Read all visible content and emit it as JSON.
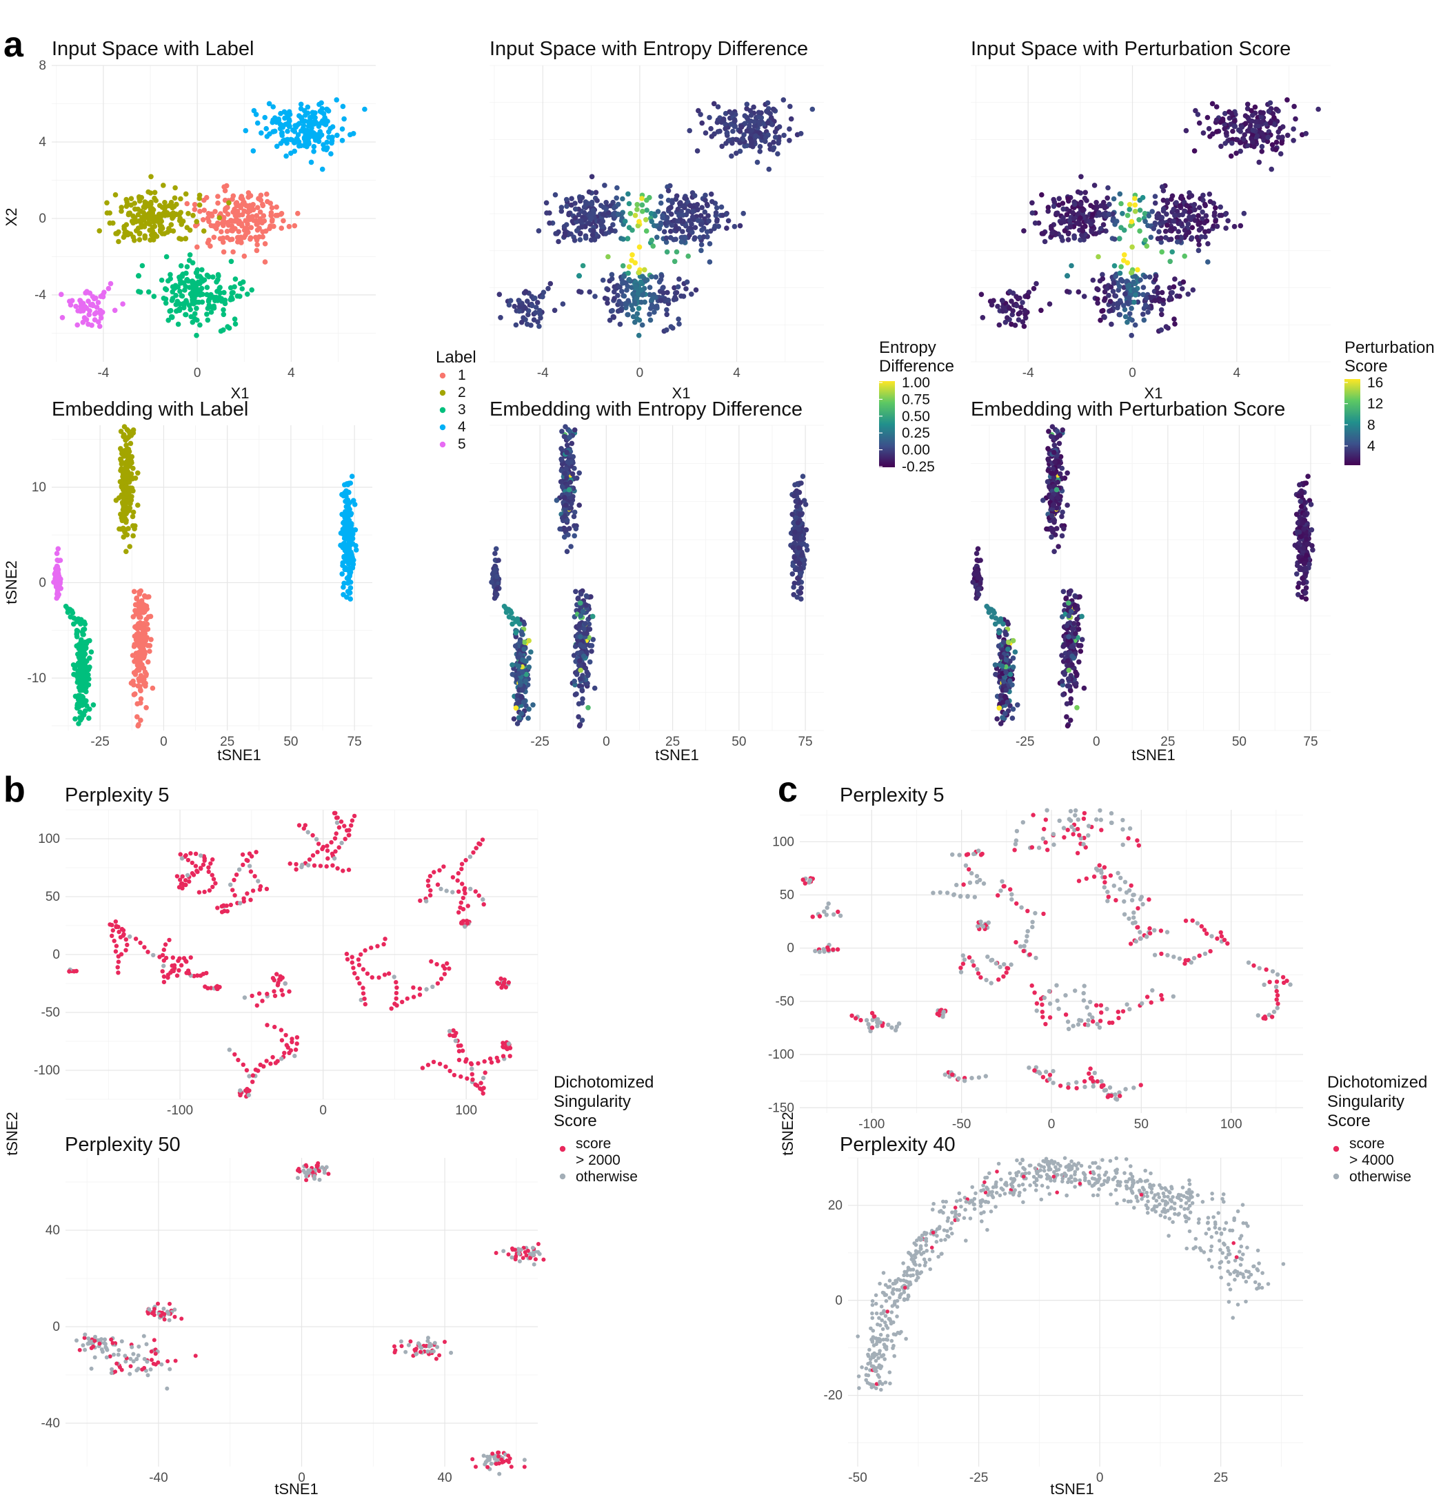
{
  "figure": {
    "panel_letters": {
      "a": "a",
      "b": "b",
      "c": "c"
    },
    "colors": {
      "label_1": "#F8766D",
      "label_2": "#A3A500",
      "label_3": "#00BF7D",
      "label_4": "#00B0F6",
      "label_5": "#E76BF3",
      "singular": "#E8285C",
      "otherwise": "#A3AEB7",
      "viridis_low": "#440154",
      "viridis_mid": "#21908C",
      "viridis_high": "#FDE725"
    }
  },
  "legends": {
    "label": {
      "title": "Label",
      "entries": [
        "1",
        "2",
        "3",
        "4",
        "5"
      ]
    },
    "entropy": {
      "title_line1": "Entropy",
      "title_line2": "Difference",
      "ticks": [
        "1.00",
        "0.75",
        "0.50",
        "0.25",
        "0.00",
        "-0.25"
      ]
    },
    "perturbation": {
      "title_line1": "Perturbation",
      "title_line2": "Score",
      "ticks": [
        "16",
        "12",
        "8",
        "4"
      ]
    },
    "singularity_b": {
      "title_line1": "Dichotomized",
      "title_line2": "Singularity",
      "title_line3": "Score",
      "entry1_line1": "score",
      "entry1_line2": "> 2000",
      "entry2": "otherwise"
    },
    "singularity_c": {
      "title_line1": "Dichotomized",
      "title_line2": "Singularity",
      "title_line3": "Score",
      "entry1_line1": "score",
      "entry1_line2": "> 4000",
      "entry2": "otherwise"
    }
  },
  "chart_data": [
    {
      "id": "a1",
      "type": "scatter",
      "title": "Input Space with Label",
      "xlabel": "X1",
      "ylabel": "X2",
      "xlim": [
        -6.2,
        7.6
      ],
      "ylim": [
        -7.5,
        8.0
      ],
      "x_ticks": [
        -4,
        0,
        4
      ],
      "y_ticks": [
        -4,
        0,
        4,
        8
      ],
      "color_by": "label",
      "clusters": [
        {
          "label": "1",
          "center": [
            1.8,
            0.0
          ],
          "spread": [
            0.95,
            0.85
          ],
          "n": 190
        },
        {
          "label": "2",
          "center": [
            -1.8,
            0.0
          ],
          "spread": [
            0.9,
            0.75
          ],
          "n": 190
        },
        {
          "label": "3",
          "center": [
            0.0,
            -4.0
          ],
          "spread": [
            1.0,
            0.85
          ],
          "n": 190
        },
        {
          "label": "4",
          "center": [
            4.5,
            4.7
          ],
          "spread": [
            0.9,
            0.65
          ],
          "n": 180
        },
        {
          "label": "5",
          "center": [
            -4.6,
            -4.6
          ],
          "spread": [
            0.6,
            0.5
          ],
          "n": 55
        }
      ]
    },
    {
      "id": "a2",
      "type": "scatter",
      "title": "Input Space with Entropy Difference",
      "xlabel": "X1",
      "ylabel": "",
      "xlim": [
        -6.2,
        7.6
      ],
      "ylim": [
        -7.5,
        8.0
      ],
      "x_ticks": [
        -4,
        0,
        4
      ],
      "y_ticks": [],
      "color_by": "entropy_difference",
      "color_range": [
        -0.25,
        1.0
      ]
    },
    {
      "id": "a3",
      "type": "scatter",
      "title": "Input Space with Perturbation Score",
      "xlabel": "X1",
      "ylabel": "",
      "xlim": [
        -6.2,
        7.6
      ],
      "ylim": [
        -7.5,
        8.0
      ],
      "x_ticks": [
        -4,
        0,
        4
      ],
      "y_ticks": [],
      "color_by": "perturbation_score",
      "color_range": [
        1,
        17
      ]
    },
    {
      "id": "a4",
      "type": "scatter",
      "title": "Embedding with Label",
      "xlabel": "tSNE1",
      "ylabel": "tSNE2",
      "xlim": [
        -44,
        82
      ],
      "ylim": [
        -15.5,
        16.5
      ],
      "x_ticks": [
        -25,
        0,
        25,
        50,
        75
      ],
      "y_ticks": [
        -10,
        0,
        10
      ],
      "color_by": "label",
      "clusters": [
        {
          "label": "2",
          "center": [
            -14.5,
            10.5
          ],
          "spread": [
            1.4,
            3.2
          ],
          "n": 190
        },
        {
          "label": "4",
          "center": [
            72.5,
            4.5
          ],
          "spread": [
            1.3,
            2.8
          ],
          "n": 180
        },
        {
          "label": "1",
          "center": [
            -9.0,
            -6.5
          ],
          "spread": [
            1.5,
            3.0
          ],
          "n": 190
        },
        {
          "label": "3",
          "center": [
            -32.0,
            -9.5
          ],
          "spread": [
            1.4,
            2.4
          ],
          "n": 190
        },
        {
          "label": "5",
          "center": [
            -41.5,
            0.5
          ],
          "spread": [
            0.6,
            1.0
          ],
          "n": 55
        }
      ]
    },
    {
      "id": "a5",
      "type": "scatter",
      "title": "Embedding with Entropy Difference",
      "xlabel": "tSNE1",
      "ylabel": "",
      "xlim": [
        -44,
        82
      ],
      "ylim": [
        -15.5,
        16.5
      ],
      "x_ticks": [
        -25,
        0,
        25,
        50,
        75
      ],
      "y_ticks": [],
      "color_by": "entropy_difference"
    },
    {
      "id": "a6",
      "type": "scatter",
      "title": "Embedding with Perturbation Score",
      "xlabel": "tSNE1",
      "ylabel": "",
      "xlim": [
        -44,
        82
      ],
      "ylim": [
        -15.5,
        16.5
      ],
      "x_ticks": [
        -25,
        0,
        25,
        50,
        75
      ],
      "y_ticks": [],
      "color_by": "perturbation_score"
    },
    {
      "id": "b1",
      "type": "scatter",
      "title": "Perplexity 5",
      "xlabel": "",
      "ylabel": "tSNE2",
      "xlim": [
        -180,
        150
      ],
      "ylim": [
        -125,
        125
      ],
      "x_ticks": [
        -100,
        0,
        100
      ],
      "y_ticks": [
        -100,
        -50,
        0,
        50,
        100
      ],
      "color_by": "dichotomized_singularity",
      "clusters": [
        {
          "center": [
            -80,
            70
          ],
          "spread": [
            14,
            18
          ],
          "n": 45,
          "kind": "strands"
        },
        {
          "center": [
            -55,
            60
          ],
          "spread": [
            8,
            26
          ],
          "n": 35,
          "kind": "strands"
        },
        {
          "center": [
            10,
            90
          ],
          "spread": [
            22,
            22
          ],
          "n": 55,
          "kind": "strands"
        },
        {
          "center": [
            95,
            70
          ],
          "spread": [
            22,
            22
          ],
          "n": 55,
          "kind": "strands"
        },
        {
          "center": [
            -130,
            0
          ],
          "spread": [
            25,
            18
          ],
          "n": 60,
          "kind": "strands"
        },
        {
          "center": [
            -85,
            -22
          ],
          "spread": [
            8,
            8
          ],
          "n": 18,
          "kind": "strands"
        },
        {
          "center": [
            -45,
            -65
          ],
          "spread": [
            18,
            30
          ],
          "n": 70,
          "kind": "strands"
        },
        {
          "center": [
            50,
            -15
          ],
          "spread": [
            25,
            20
          ],
          "n": 65,
          "kind": "strands"
        },
        {
          "center": [
            95,
            -95
          ],
          "spread": [
            25,
            17
          ],
          "n": 60,
          "kind": "strands"
        },
        {
          "center": [
            -172,
            -14
          ],
          "spread": [
            3,
            1.5
          ],
          "n": 5,
          "kind": "strands"
        }
      ]
    },
    {
      "id": "b2",
      "type": "scatter",
      "title": "Perplexity 50",
      "xlabel": "tSNE1",
      "ylabel": "",
      "xlim": [
        -66,
        66
      ],
      "ylim": [
        -58,
        70
      ],
      "x_ticks": [
        -40,
        0,
        40
      ],
      "y_ticks": [
        -40,
        0,
        40
      ],
      "color_by": "dichotomized_singularity",
      "clusters": [
        {
          "center": [
            3,
            64
          ],
          "spread": [
            2.5,
            1.6
          ],
          "n": 45,
          "kind": "blob"
        },
        {
          "center": [
            62,
            30
          ],
          "spread": [
            3,
            1.6
          ],
          "n": 45,
          "kind": "blob"
        },
        {
          "center": [
            -39,
            6
          ],
          "spread": [
            2.5,
            1.6
          ],
          "n": 40,
          "kind": "blob"
        },
        {
          "center": [
            -57,
            -7
          ],
          "spread": [
            3,
            1.6
          ],
          "n": 40,
          "kind": "blob"
        },
        {
          "center": [
            -45,
            -14
          ],
          "spread": [
            6,
            4
          ],
          "n": 60,
          "kind": "blob"
        },
        {
          "center": [
            34,
            -9
          ],
          "spread": [
            3,
            1.8
          ],
          "n": 45,
          "kind": "blob"
        },
        {
          "center": [
            54,
            -55
          ],
          "spread": [
            3.5,
            1.8
          ],
          "n": 45,
          "kind": "blob"
        }
      ]
    },
    {
      "id": "c1",
      "type": "scatter",
      "title": "Perplexity 5",
      "xlabel": "",
      "ylabel": "tSNE2",
      "xlim": [
        -140,
        140
      ],
      "ylim": [
        -155,
        130
      ],
      "x_ticks": [
        -100,
        -50,
        0,
        50,
        100
      ],
      "y_ticks": [
        -150,
        -100,
        -50,
        0,
        50,
        100
      ],
      "color_by": "dichotomized_singularity",
      "clusters": [
        {
          "center": [
            20,
            112
          ],
          "spread": [
            55,
            10
          ],
          "n": 60,
          "kind": "strands"
        },
        {
          "center": [
            -55,
            70
          ],
          "spread": [
            12,
            20
          ],
          "n": 30,
          "kind": "strands"
        },
        {
          "center": [
            -125,
            50
          ],
          "spread": [
            5,
            20
          ],
          "n": 20,
          "kind": "strands"
        },
        {
          "center": [
            -125,
            -5
          ],
          "spread": [
            4,
            10
          ],
          "n": 12,
          "kind": "strands"
        },
        {
          "center": [
            -15,
            30
          ],
          "spread": [
            14,
            25
          ],
          "n": 40,
          "kind": "strands"
        },
        {
          "center": [
            30,
            35
          ],
          "spread": [
            15,
            25
          ],
          "n": 45,
          "kind": "strands"
        },
        {
          "center": [
            72,
            10
          ],
          "spread": [
            18,
            15
          ],
          "n": 40,
          "kind": "strands"
        },
        {
          "center": [
            -45,
            -35
          ],
          "spread": [
            20,
            18
          ],
          "n": 40,
          "kind": "strands"
        },
        {
          "center": [
            15,
            -55
          ],
          "spread": [
            40,
            12
          ],
          "n": 60,
          "kind": "strands"
        },
        {
          "center": [
            -100,
            -70
          ],
          "spread": [
            15,
            5
          ],
          "n": 25,
          "kind": "strands"
        },
        {
          "center": [
            120,
            -35
          ],
          "spread": [
            8,
            20
          ],
          "n": 25,
          "kind": "strands"
        },
        {
          "center": [
            -25,
            -120
          ],
          "spread": [
            20,
            5
          ],
          "n": 25,
          "kind": "strands"
        },
        {
          "center": [
            40,
            -125
          ],
          "spread": [
            25,
            8
          ],
          "n": 35,
          "kind": "strands"
        }
      ]
    },
    {
      "id": "c2",
      "type": "scatter",
      "title": "Perplexity 40",
      "xlabel": "tSNE1",
      "ylabel": "",
      "xlim": [
        -52,
        42
      ],
      "ylim": [
        -35,
        30
      ],
      "x_ticks": [
        -50,
        -25,
        0,
        25
      ],
      "y_ticks": [
        -20,
        0,
        20
      ],
      "color_by": "dichotomized_singularity",
      "shape": "arc",
      "arc_center": [
        -7,
        -22
      ],
      "arc_radius_x": 40,
      "arc_radius_y": 49,
      "n": 800
    }
  ]
}
